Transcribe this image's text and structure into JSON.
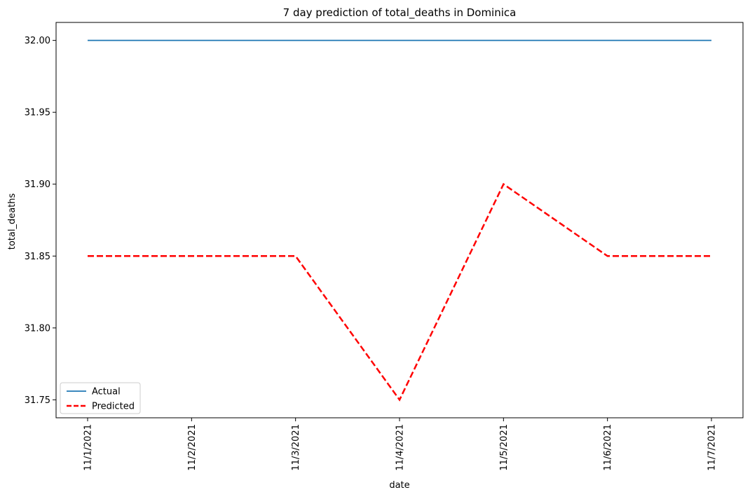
{
  "chart_data": {
    "type": "line",
    "title": "7 day prediction of total_deaths in Dominica",
    "xlabel": "date",
    "ylabel": "total_deaths",
    "x": [
      "11/1/2021",
      "11/2/2021",
      "11/3/2021",
      "11/4/2021",
      "11/5/2021",
      "11/6/2021",
      "11/7/2021"
    ],
    "series": [
      {
        "name": "Actual",
        "values": [
          32.0,
          32.0,
          32.0,
          32.0,
          32.0,
          32.0,
          32.0
        ],
        "color": "#1f77b4",
        "style": "solid"
      },
      {
        "name": "Predicted",
        "values": [
          31.85,
          31.85,
          31.85,
          31.75,
          31.9,
          31.85,
          31.85
        ],
        "color": "#ff0000",
        "style": "dashed"
      }
    ],
    "ylim": [
      31.7375,
      32.0125
    ],
    "yticks": [
      "31.75",
      "31.80",
      "31.85",
      "31.90",
      "31.95",
      "32.00"
    ],
    "grid": false,
    "legend": "lower-left"
  }
}
